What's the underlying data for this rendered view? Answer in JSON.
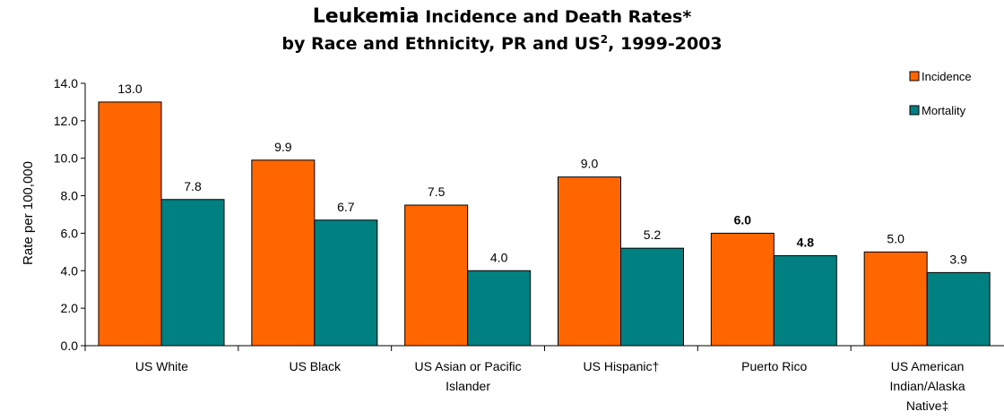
{
  "title": {
    "lead": "Leukemia",
    "line1_rest": " Incidence and Death Rates*",
    "line2_main": "by Race and Ethnicity, PR and US",
    "line2_sup": "2",
    "line2_tail": ", 1999-2003"
  },
  "chart_data": {
    "type": "bar",
    "title": "Leukemia Incidence and Death Rates* by Race and Ethnicity, PR and US2, 1999-2003",
    "xlabel": "",
    "ylabel": "Rate per 100,000",
    "ylim": [
      0,
      14
    ],
    "yticks": [
      0,
      2,
      4,
      6,
      8,
      10,
      12,
      14
    ],
    "ytick_labels": [
      "0.0",
      "2.0",
      "4.0",
      "6.0",
      "8.0",
      "10.0",
      "12.0",
      "14.0"
    ],
    "categories": [
      [
        "US White"
      ],
      [
        "US Black"
      ],
      [
        "US Asian or Pacific",
        "Islander"
      ],
      [
        "US Hispanic†"
      ],
      [
        "Puerto Rico"
      ],
      [
        "US American",
        "Indian/Alaska",
        "Native‡"
      ]
    ],
    "series": [
      {
        "name": "Incidence",
        "color": "#ff6600",
        "values": [
          13.0,
          9.9,
          7.5,
          9.0,
          6.0,
          5.0
        ],
        "labels": [
          "13.0",
          "9.9",
          "7.5",
          "9.0",
          "6.0",
          "5.0"
        ],
        "bold_labels": [
          false,
          false,
          false,
          false,
          true,
          false
        ]
      },
      {
        "name": "Mortality",
        "color": "#008080",
        "values": [
          7.8,
          6.7,
          4.0,
          5.2,
          4.8,
          3.9
        ],
        "labels": [
          "7.8",
          "6.7",
          "4.0",
          "5.2",
          "4.8",
          "3.9"
        ],
        "bold_labels": [
          false,
          false,
          false,
          false,
          true,
          false
        ]
      }
    ],
    "grid": false,
    "legend_position": "top-right"
  }
}
